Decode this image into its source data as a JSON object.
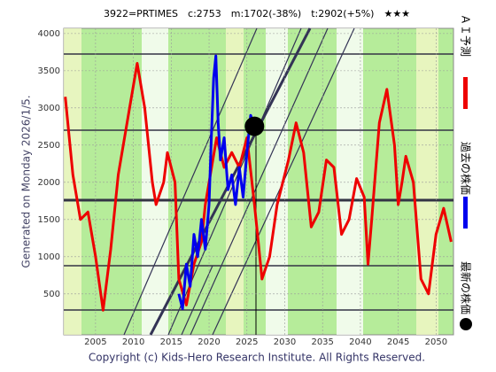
{
  "chart_data": {
    "type": "line",
    "title": "3922=PRTIMES　c:2753　m:1702(-38%)　t:2902(+5%)　★★★",
    "side_note": "Generated on Monday 2026/1/5.",
    "footer": "Copyright (c) Kids-Hero Research Institute. All Rights Reserved.",
    "xlim": [
      2000.8,
      2052.3
    ],
    "ylim": [
      -50,
      4070
    ],
    "xticks": [
      2005,
      2010,
      2015,
      2020,
      2025,
      2030,
      2035,
      2040,
      2045,
      2050
    ],
    "yticks": [
      500,
      1000,
      1500,
      2000,
      2500,
      3000,
      3500,
      4000
    ],
    "grid": true,
    "series": [
      {
        "name": "ＡＩ予測",
        "color": "#ee0000",
        "x": [
          2001,
          2002,
          2003,
          2004,
          2005,
          2006,
          2007,
          2008,
          2009.5,
          2010.5,
          2011.5,
          2012.5,
          2013,
          2014,
          2014.5,
          2015.5,
          2016,
          2017,
          2018,
          2019,
          2019.5,
          2020.5,
          2021,
          2022,
          2023,
          2024,
          2025,
          2026,
          2026.5,
          2027,
          2028,
          2029,
          2030.5,
          2031.5,
          2032.5,
          2033.5,
          2034.5,
          2035.5,
          2036.5,
          2037.5,
          2038.5,
          2039.5,
          2040.5,
          2041,
          2041.5,
          2042.5,
          2043.5,
          2044.5,
          2045,
          2045.5,
          2046,
          2047,
          2048,
          2049,
          2050,
          2051,
          2052
        ],
        "values": [
          3150,
          2100,
          1500,
          1600,
          1000,
          280,
          1100,
          2100,
          3000,
          3600,
          3000,
          2000,
          1700,
          2000,
          2400,
          2000,
          700,
          350,
          900,
          1200,
          1700,
          2300,
          2600,
          2200,
          2400,
          2200,
          2600,
          1700,
          1200,
          700,
          1000,
          1700,
          2300,
          2800,
          2400,
          1400,
          1600,
          2300,
          2200,
          1300,
          1500,
          2050,
          1800,
          900,
          1500,
          2800,
          3250,
          2500,
          1700,
          2000,
          2350,
          2000,
          700,
          500,
          1300,
          1650,
          1200
        ]
      },
      {
        "name": "過去の株価",
        "color": "#0000ee",
        "x": [
          2016,
          2016.5,
          2017,
          2017.5,
          2018,
          2018.5,
          2019,
          2019.5,
          2020,
          2020.3,
          2020.6,
          2020.9,
          2021.2,
          2021.5,
          2022,
          2022.5,
          2023,
          2023.5,
          2024,
          2024.5,
          2025,
          2025.5,
          2026
        ],
        "values": [
          500,
          300,
          900,
          600,
          1300,
          1000,
          1500,
          1100,
          1700,
          2600,
          3400,
          3700,
          2800,
          2300,
          2600,
          1900,
          2100,
          1700,
          2200,
          1800,
          2400,
          2900,
          2753
        ]
      },
      {
        "name": "最新の株価",
        "color": "#000000",
        "x": [
          2026
        ],
        "values": [
          2753
        ]
      }
    ]
  }
}
